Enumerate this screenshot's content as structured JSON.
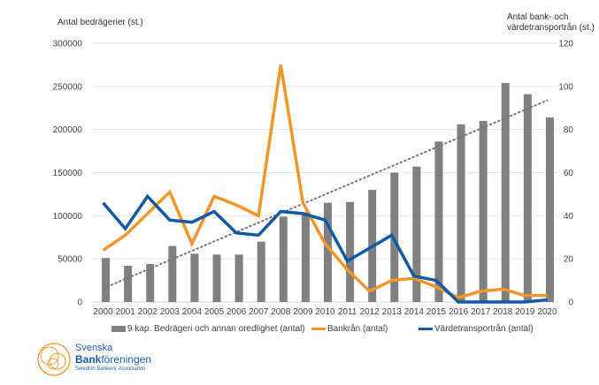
{
  "chart_data": {
    "type": "bar",
    "title": "",
    "left_axis_label": "Antal bedrägerier (st.)",
    "right_axis_label_line1": "Antal bank- och",
    "right_axis_label_line2": "värdetransportrån (st.)",
    "categories": [
      "2000",
      "2001",
      "2002",
      "2003",
      "2004",
      "2005",
      "2006",
      "2007",
      "2008",
      "2009",
      "2010",
      "2011",
      "2012",
      "2013",
      "2014",
      "2015",
      "2016",
      "2017",
      "2018",
      "2019",
      "2020"
    ],
    "ylim_left": [
      0,
      300000
    ],
    "yticks_left": [
      "0",
      "50000",
      "100000",
      "150000",
      "200000",
      "250000",
      "300000"
    ],
    "ylim_right": [
      0,
      120
    ],
    "yticks_right": [
      "0",
      "20",
      "40",
      "60",
      "80",
      "100",
      "120"
    ],
    "grid": true,
    "legend_position": "bottom",
    "series": [
      {
        "name": "9 kap. Bedrägeri och annan oredlighet (antal)",
        "type": "bar",
        "axis": "left",
        "color": "#808080",
        "values": [
          51000,
          42000,
          44000,
          65000,
          56000,
          55000,
          55000,
          70000,
          99000,
          104000,
          115000,
          116000,
          130000,
          150000,
          157000,
          186000,
          206000,
          210000,
          254000,
          241000,
          214000
        ]
      },
      {
        "name": "Bankrån (antal)",
        "type": "line",
        "axis": "right",
        "color": "#f0962a",
        "values": [
          24,
          31,
          41,
          51,
          27,
          49,
          45,
          40,
          110,
          46,
          27,
          15,
          5,
          10,
          11,
          7,
          2,
          5,
          6,
          3,
          3
        ]
      },
      {
        "name": "Värdetransportrån (antal)",
        "type": "line",
        "axis": "right",
        "color": "#0f5aa5",
        "values": [
          46,
          34,
          49,
          38,
          37,
          42,
          32,
          31,
          42,
          41,
          38,
          19,
          25,
          31,
          12,
          10,
          0,
          0,
          0,
          0,
          1
        ]
      },
      {
        "name": "trend",
        "type": "trendline",
        "axis": "left",
        "color": "#777777",
        "of_series": 0
      }
    ]
  },
  "legend": {
    "items": [
      {
        "label": "9 kap. Bedrägeri och annan oredlighet (antal)",
        "color": "#808080"
      },
      {
        "label": "Bankrån (antal)",
        "color": "#f0962a"
      },
      {
        "label": "Värdetransportrån (antal)",
        "color": "#0f5aa5"
      }
    ]
  },
  "logo": {
    "line1": "Svenska",
    "line2_bold": "Bank",
    "line2_rest": "föreningen",
    "line3": "Swedish Bankers' Association"
  }
}
